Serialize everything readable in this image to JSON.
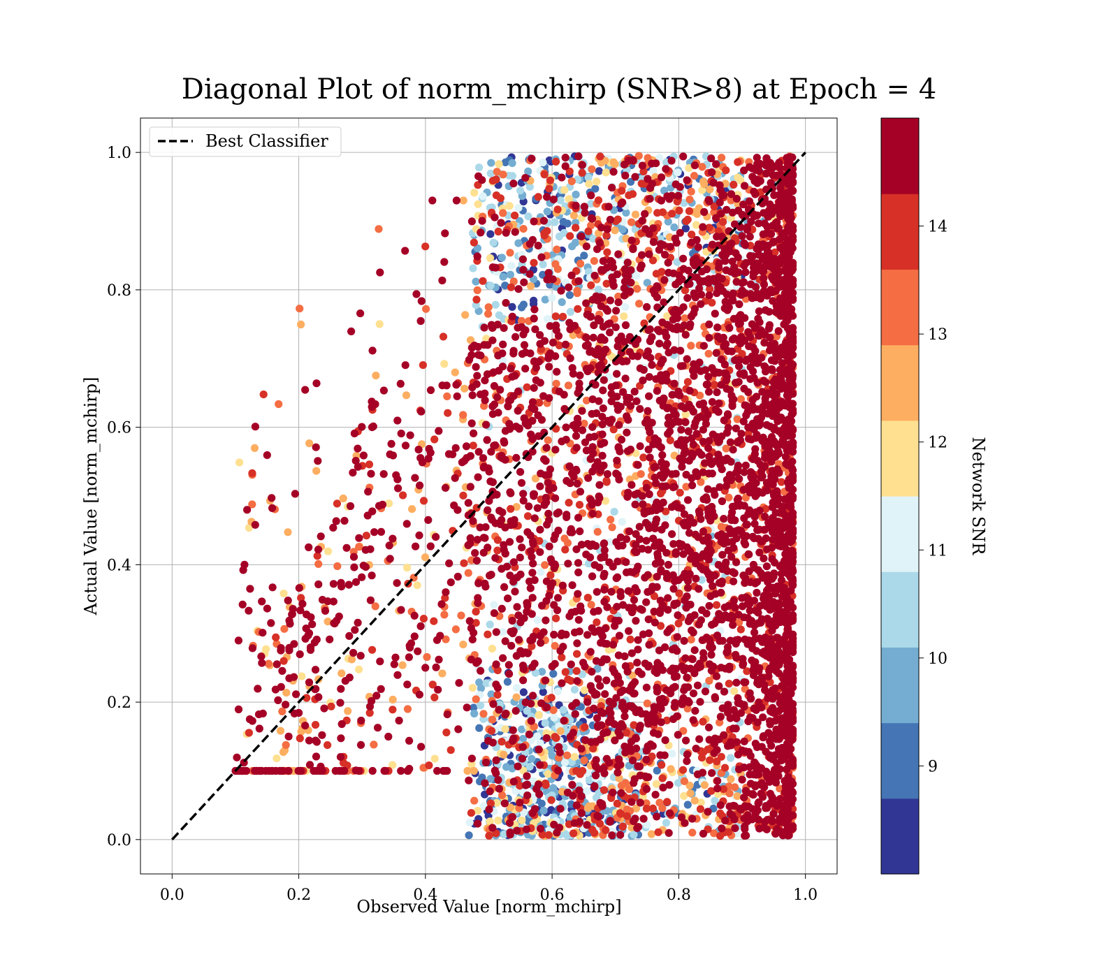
{
  "chart_data": {
    "type": "scatter",
    "title": "Diagonal Plot of norm_mchirp (SNR>8) at Epoch = 4",
    "xlabel": "Observed Value [norm_mchirp]",
    "ylabel": "Actual Value [norm_mchirp]",
    "xlim": [
      -0.05,
      1.05
    ],
    "ylim": [
      -0.05,
      1.05
    ],
    "xticks": [
      "0.0",
      "0.2",
      "0.4",
      "0.6",
      "0.8",
      "1.0"
    ],
    "yticks": [
      "0.0",
      "0.2",
      "0.4",
      "0.6",
      "0.8",
      "1.0"
    ],
    "xtick_values": [
      0.0,
      0.2,
      0.4,
      0.6,
      0.8,
      1.0
    ],
    "ytick_values": [
      0.0,
      0.2,
      0.4,
      0.6,
      0.8,
      1.0
    ],
    "grid": true,
    "legend": {
      "position": "top-left",
      "entries": [
        {
          "label": "Best Classifier",
          "style": "dashed",
          "color": "#000000"
        }
      ]
    },
    "reference_line": {
      "name": "Best Classifier",
      "x": [
        0.0,
        1.0
      ],
      "y": [
        0.0,
        1.0
      ]
    },
    "colorbar": {
      "label": "Network SNR",
      "range": [
        8.0,
        15.0
      ],
      "ticks": [
        "9",
        "10",
        "11",
        "12",
        "13",
        "14"
      ],
      "tick_values": [
        9,
        10,
        11,
        12,
        13,
        14
      ],
      "colors": [
        "#313695",
        "#4575b4",
        "#74add1",
        "#abd9e9",
        "#e0f3f8",
        "#fee090",
        "#fdae61",
        "#f46d43",
        "#d73027",
        "#a50026"
      ]
    },
    "density_regions": [
      {
        "x": [
          0.45,
          0.98
        ],
        "y": [
          0.0,
          1.0
        ],
        "snr": [
          8.0,
          15.0
        ]
      }
    ]
  }
}
